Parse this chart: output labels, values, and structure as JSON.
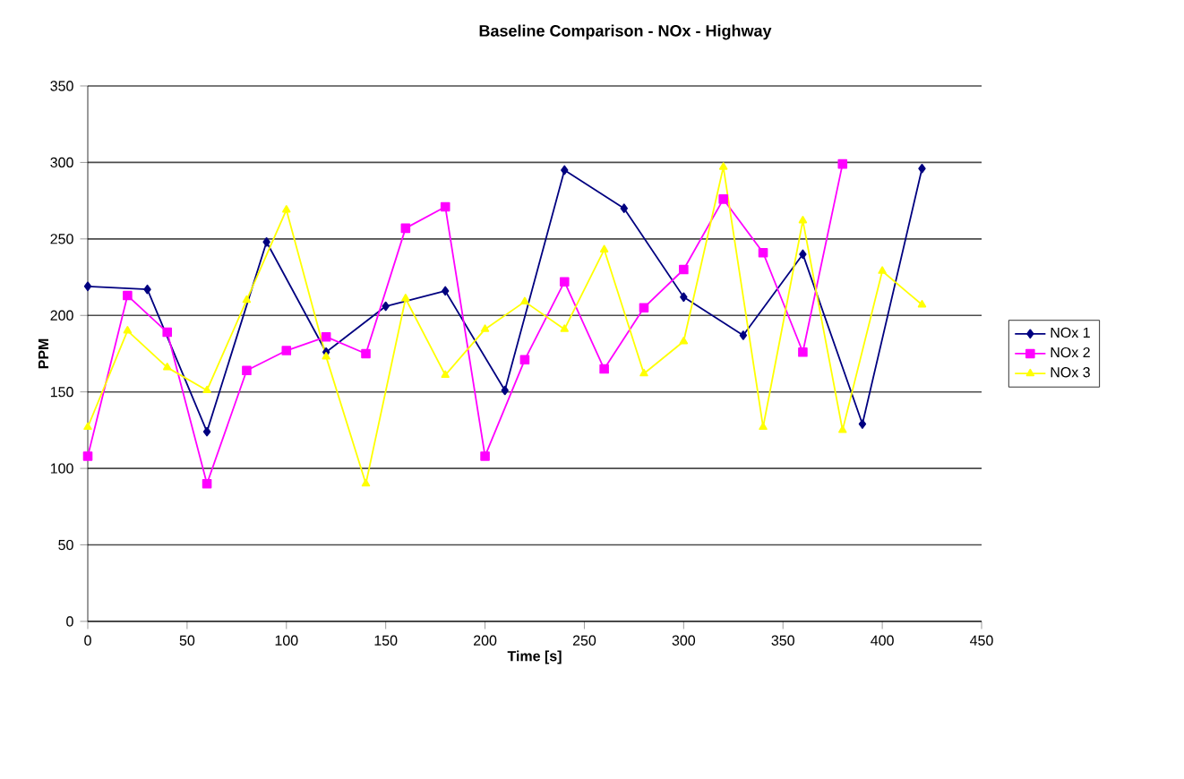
{
  "chart_data": {
    "type": "line",
    "title": "Baseline Comparison - NOx - Highway",
    "xlabel": "Time [s]",
    "ylabel": "PPM",
    "xlim": [
      0,
      450
    ],
    "xticks": [
      0,
      50,
      100,
      150,
      200,
      250,
      300,
      350,
      400,
      450
    ],
    "ylim": [
      0,
      350
    ],
    "yticks": [
      0,
      50,
      100,
      150,
      200,
      250,
      300,
      350
    ],
    "grid": "y",
    "legend": "right",
    "series": [
      {
        "name": "NOx 1",
        "color": "#000080",
        "marker": "diamond",
        "x": [
          0,
          30,
          60,
          90,
          120,
          150,
          180,
          210,
          240,
          270,
          300,
          330,
          360,
          390,
          420
        ],
        "values": [
          219,
          217,
          124,
          248,
          176,
          206,
          216,
          151,
          295,
          270,
          212,
          187,
          240,
          129,
          296
        ]
      },
      {
        "name": "NOx 2",
        "color": "#ff00ff",
        "marker": "square",
        "x": [
          0,
          20,
          40,
          60,
          80,
          100,
          120,
          140,
          160,
          180,
          200,
          220,
          240,
          260,
          280,
          300,
          320,
          340,
          360,
          380
        ],
        "values": [
          108,
          213,
          189,
          90,
          164,
          177,
          186,
          175,
          257,
          271,
          108,
          171,
          222,
          165,
          205,
          230,
          276,
          241,
          176,
          299
        ]
      },
      {
        "name": "NOx 3",
        "color": "#ffff00",
        "marker": "triangle",
        "x": [
          0,
          20,
          40,
          60,
          80,
          100,
          120,
          140,
          160,
          180,
          200,
          220,
          240,
          260,
          280,
          300,
          320,
          340,
          360,
          380,
          400,
          420
        ],
        "values": [
          127,
          190,
          166,
          151,
          210,
          269,
          173,
          90,
          211,
          161,
          191,
          209,
          191,
          243,
          162,
          183,
          297,
          127,
          262,
          125,
          229,
          207
        ]
      }
    ]
  }
}
